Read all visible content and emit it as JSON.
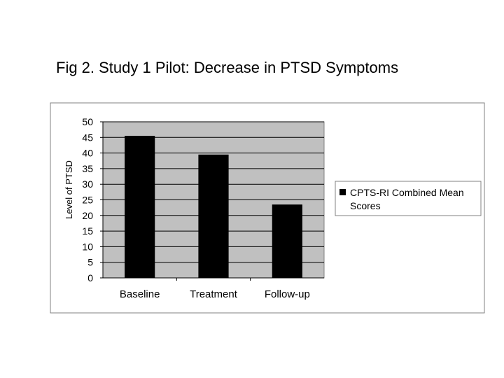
{
  "slide": {
    "title": "Fig 2. Study 1 Pilot: Decrease in PTSD Symptoms"
  },
  "chart_data": {
    "type": "bar",
    "title": "",
    "xlabel": "",
    "ylabel": "Level of PTSD",
    "categories": [
      "Baseline",
      "Treatment",
      "Follow-up"
    ],
    "series": [
      {
        "name": "CPTS-RI Combined Mean Scores",
        "values": [
          45.5,
          39.5,
          23.5
        ],
        "color": "#000000"
      }
    ],
    "ylim": [
      0,
      50
    ],
    "yticks": [
      "0",
      "5",
      "10",
      "15",
      "20",
      "25",
      "30",
      "35",
      "40",
      "45",
      "50"
    ],
    "grid": true,
    "legend_position": "right",
    "colors": {
      "plot_background": "#c0c0c0",
      "chart_background": "#ffffff",
      "gridline": "#000000",
      "bar": "#000000"
    }
  }
}
